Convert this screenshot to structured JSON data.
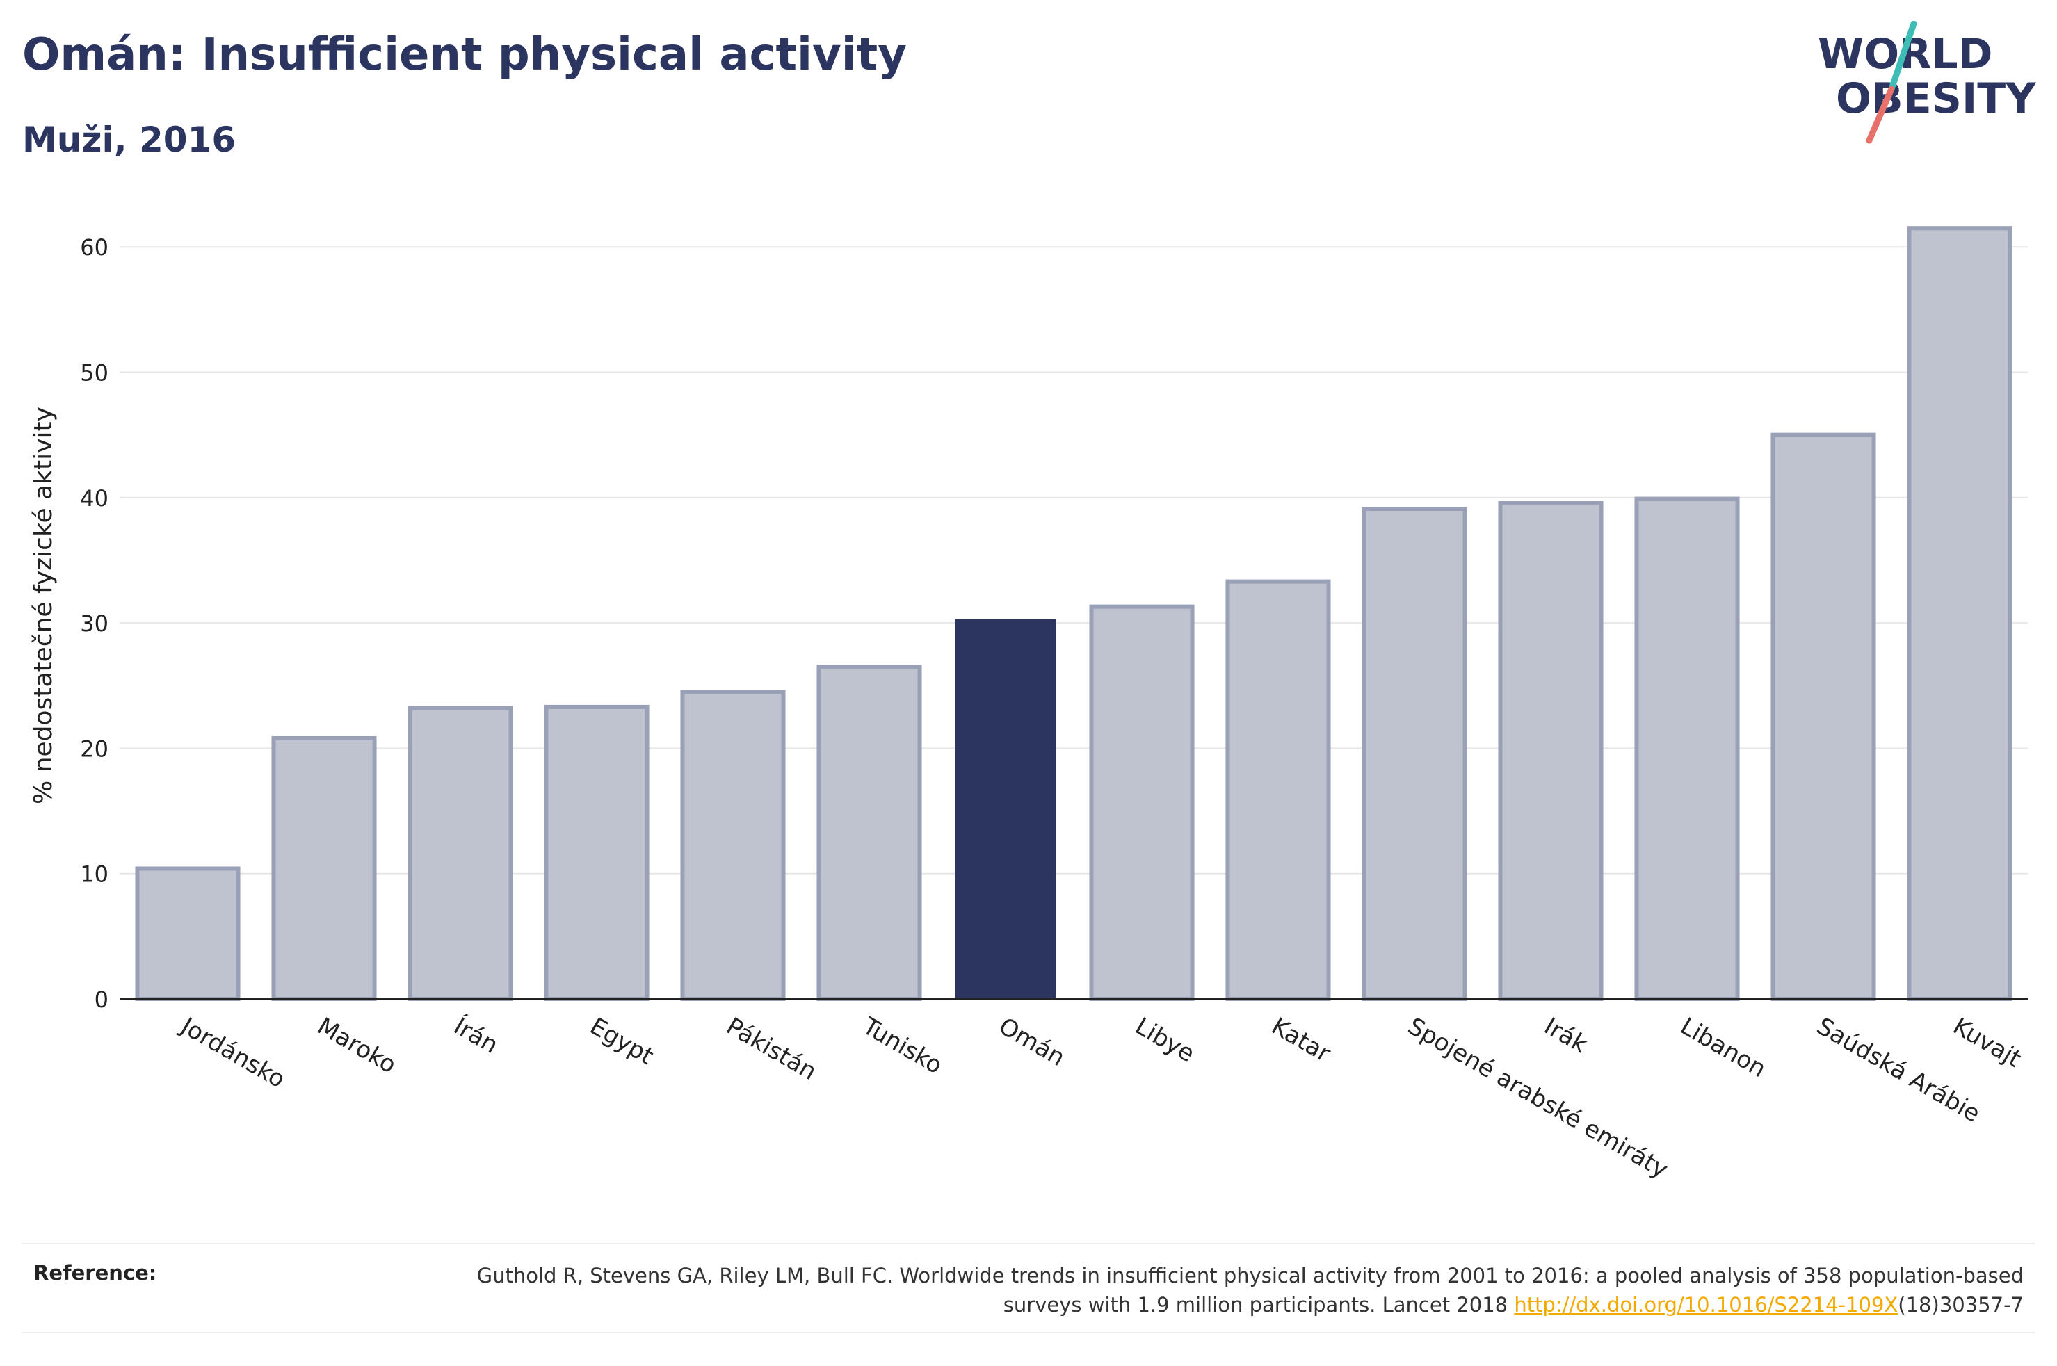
{
  "header": {
    "title": "Omán: Insufficient physical activity",
    "subtitle": "Muži, 2016"
  },
  "logo": {
    "line1": "WORLD",
    "line2": "OBESITY",
    "text_color": "#2b3560",
    "slash_colors": [
      "#3dbdb5",
      "#e8706a"
    ]
  },
  "colors": {
    "highlight": "#2b3560",
    "bar_fill": "#bfc3d0",
    "bar_stroke": "#9aa0b6",
    "grid": "#e6e6e6",
    "axis": "#222222"
  },
  "chart_data": {
    "type": "bar",
    "title": "Omán: Insufficient physical activity",
    "subtitle": "Muži, 2016",
    "xlabel": "",
    "ylabel": "% nedostatečné fyzické aktivity",
    "ylim": [
      0,
      65
    ],
    "yticks": [
      0,
      10,
      20,
      30,
      40,
      50,
      60
    ],
    "grid": true,
    "highlight": "Omán",
    "categories": [
      "Jordánsko",
      "Maroko",
      "Írán",
      "Egypt",
      "Pákistán",
      "Tunisko",
      "Omán",
      "Libye",
      "Katar",
      "Spojené arabské emiráty",
      "Irák",
      "Libanon",
      "Saúdská Arábie",
      "Kuvajt"
    ],
    "values": [
      10.4,
      20.8,
      23.2,
      23.3,
      24.5,
      26.5,
      30.3,
      31.3,
      33.3,
      39.1,
      39.6,
      39.9,
      45.0,
      61.5
    ]
  },
  "footer": {
    "label": "Reference:",
    "text_before": "Guthold R, Stevens GA, Riley LM, Bull FC. Worldwide trends in insufficient physical activity from 2001 to 2016: a pooled analysis of 358 population-based surveys with 1.9 million participants. Lancet 2018 ",
    "link": "http://dx.doi.org/10.1016/S2214-109X",
    "text_after": "(18)30357-7"
  }
}
